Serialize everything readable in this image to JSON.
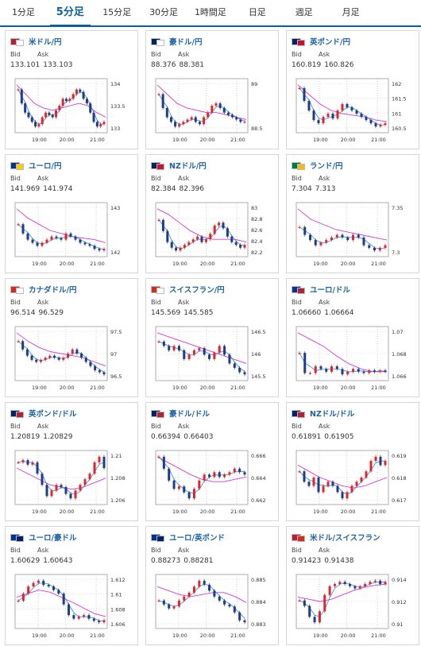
{
  "tabs": [
    "1分足",
    "5分足",
    "15分足",
    "30分足",
    "1時間足",
    "日足",
    "週足",
    "月足"
  ],
  "active_tab": 1,
  "labels": {
    "bid": "Bid",
    "ask": "Ask"
  },
  "cards": [
    {
      "pair": "米ドル/円",
      "bid": "133.101",
      "ask": "133.103",
      "flag": [
        "#b22234",
        "#ffffff"
      ],
      "y_ticks": [
        "134",
        "133.5",
        "133"
      ],
      "x_ticks": [
        "19:00",
        "20:00",
        "21:00"
      ],
      "candles": [
        133.8,
        133.5,
        133.3,
        133.2,
        133.1,
        133.0,
        133.05,
        133.2,
        133.3,
        133.25,
        133.2,
        133.35,
        133.45,
        133.6,
        133.55,
        133.6,
        133.7,
        133.8,
        133.75,
        133.6,
        133.5,
        133.3,
        133.1,
        133.0,
        133.05,
        133.1
      ],
      "ma": [
        133.9,
        133.7,
        133.5,
        133.4,
        133.35,
        133.4,
        133.45,
        133.5,
        133.45,
        133.3,
        133.2
      ]
    },
    {
      "pair": "豪ドル/円",
      "bid": "88.376",
      "ask": "88.381",
      "flag": [
        "#012169",
        "#ffffff"
      ],
      "y_ticks": [
        "89",
        "88.5"
      ],
      "x_ticks": [
        "19:00",
        "20:00",
        "21:00"
      ],
      "candles": [
        89.0,
        88.7,
        88.5,
        88.4,
        88.3,
        88.35,
        88.4,
        88.45,
        88.5,
        88.4,
        88.35,
        88.5,
        88.6,
        88.75,
        88.8,
        88.7,
        88.6,
        88.55,
        88.5,
        88.45,
        88.4,
        88.4
      ],
      "ma": [
        89.2,
        89.0,
        88.8,
        88.7,
        88.65,
        88.6,
        88.6,
        88.55,
        88.5,
        88.45
      ]
    },
    {
      "pair": "英ポンド/円",
      "bid": "160.819",
      "ask": "160.826",
      "flag": [
        "#012169",
        "#c8102e"
      ],
      "y_ticks": [
        "162",
        "161.5",
        "161",
        "160.5"
      ],
      "x_ticks": [
        "19:00",
        "20:00",
        "21:00"
      ],
      "candles": [
        161.9,
        161.5,
        161.2,
        160.9,
        160.8,
        161.0,
        161.1,
        160.95,
        161.2,
        161.4,
        161.3,
        161.2,
        161.1,
        161.0,
        160.9,
        160.8,
        160.7,
        160.75,
        160.8
      ],
      "ma": [
        162.0,
        161.7,
        161.4,
        161.2,
        161.1,
        161.05,
        161.0,
        160.9,
        160.85
      ]
    },
    {
      "pair": "ユーロ/円",
      "bid": "141.969",
      "ask": "141.974",
      "flag": [
        "#003399",
        "#ffcc00"
      ],
      "y_ticks": [
        "143",
        "142"
      ],
      "x_ticks": [
        "19:00",
        "20:00",
        "21:00"
      ],
      "candles": [
        142.8,
        142.5,
        142.3,
        142.2,
        142.1,
        142.2,
        142.3,
        142.4,
        142.35,
        142.3,
        142.5,
        142.4,
        142.3,
        142.2,
        142.15,
        142.1,
        142.0,
        141.95,
        142.0
      ],
      "ma": [
        143.3,
        143.0,
        142.8,
        142.6,
        142.5,
        142.4,
        142.35,
        142.3,
        142.2
      ]
    },
    {
      "pair": "NZドル/円",
      "bid": "82.384",
      "ask": "82.396",
      "flag": [
        "#012169",
        "#cc142b"
      ],
      "y_ticks": [
        "83",
        "82.8",
        "82.6",
        "82.4",
        "82.2"
      ],
      "x_ticks": [
        "19:00",
        "20:00",
        "21:00"
      ],
      "candles": [
        82.8,
        82.6,
        82.4,
        82.3,
        82.25,
        82.3,
        82.35,
        82.4,
        82.45,
        82.5,
        82.4,
        82.45,
        82.55,
        82.7,
        82.75,
        82.65,
        82.5,
        82.4,
        82.35,
        82.3,
        82.35
      ],
      "ma": [
        83.0,
        82.9,
        82.75,
        82.6,
        82.5,
        82.45,
        82.45,
        82.45,
        82.4
      ]
    },
    {
      "pair": "ランド/円",
      "bid": "7.304",
      "ask": "7.313",
      "flag": [
        "#007a4d",
        "#ffb612"
      ],
      "y_ticks": [
        "7.35",
        "7.3"
      ],
      "x_ticks": [
        "19:00",
        "20:00",
        "21:00"
      ],
      "candles": [
        7.345,
        7.33,
        7.32,
        7.31,
        7.315,
        7.32,
        7.325,
        7.33,
        7.325,
        7.32,
        7.33,
        7.325,
        7.31,
        7.305,
        7.3,
        7.305,
        7.31
      ],
      "ma": [
        7.38,
        7.36,
        7.35,
        7.34,
        7.335,
        7.33,
        7.325,
        7.32
      ]
    },
    {
      "pair": "カナダドル/円",
      "bid": "96.514",
      "ask": "96.529",
      "flag": [
        "#d52b1e",
        "#ffffff"
      ],
      "y_ticks": [
        "97.5",
        "97",
        "96.5"
      ],
      "x_ticks": [
        "19:00",
        "20:00",
        "21:00"
      ],
      "candles": [
        97.3,
        97.1,
        96.95,
        96.85,
        96.8,
        96.85,
        96.9,
        96.95,
        96.9,
        96.85,
        96.9,
        97.0,
        97.1,
        97.0,
        96.9,
        96.8,
        96.7,
        96.6,
        96.55,
        96.5
      ],
      "ma": [
        97.5,
        97.3,
        97.15,
        97.05,
        97.0,
        96.95,
        96.9,
        96.8,
        96.7
      ]
    },
    {
      "pair": "スイスフラン/円",
      "bid": "145.569",
      "ask": "145.585",
      "flag": [
        "#d52b1e",
        "#ffffff"
      ],
      "y_ticks": [
        "146.5",
        "146",
        "145.5"
      ],
      "x_ticks": [
        "19:00",
        "20:00",
        "21:00"
      ],
      "candles": [
        146.3,
        146.2,
        146.1,
        146.2,
        146.1,
        145.9,
        146.0,
        146.1,
        146.15,
        146.0,
        145.9,
        146.05,
        146.2,
        146.0,
        145.8,
        145.7,
        145.6,
        145.55
      ],
      "ma": [
        146.5,
        146.4,
        146.3,
        146.2,
        146.1,
        146.0,
        145.9,
        145.8
      ]
    },
    {
      "pair": "ユーロ/ドル",
      "bid": "1.06660",
      "ask": "1.06664",
      "flag": [
        "#003399",
        "#b22234"
      ],
      "y_ticks": [
        "1.07",
        "1.068",
        "1.066"
      ],
      "x_ticks": [
        "19:00",
        "20:00",
        "21:00"
      ],
      "candles": [
        1.068,
        1.0665,
        1.0665,
        1.067,
        1.0668,
        1.0666,
        1.067,
        1.0668,
        1.0664,
        1.0666,
        1.0668,
        1.0666,
        1.0665,
        1.0667,
        1.0666,
        1.0667,
        1.0666
      ],
      "ma": [
        1.0695,
        1.069,
        1.0685,
        1.0678,
        1.0672,
        1.0668,
        1.0666,
        1.0666
      ]
    },
    {
      "pair": "英ポンド/ドル",
      "bid": "1.20819",
      "ask": "1.20829",
      "flag": [
        "#012169",
        "#b22234"
      ],
      "y_ticks": [
        "1.21",
        "1.208",
        "1.206"
      ],
      "x_ticks": [
        "19:00",
        "20:00",
        "21:00"
      ],
      "candles": [
        1.209,
        1.2092,
        1.2088,
        1.209,
        1.208,
        1.207,
        1.206,
        1.2065,
        1.207,
        1.2068,
        1.2062,
        1.2058,
        1.2065,
        1.207,
        1.2075,
        1.208,
        1.209,
        1.2095,
        1.2085
      ],
      "ma": [
        1.2085,
        1.208,
        1.2075,
        1.207,
        1.2068,
        1.2066,
        1.2068,
        1.2072,
        1.2076
      ]
    },
    {
      "pair": "豪ドル/ドル",
      "bid": "0.66394",
      "ask": "0.66403",
      "flag": [
        "#012169",
        "#b22234"
      ],
      "y_ticks": [
        "0.666",
        "0.664",
        "0.662"
      ],
      "x_ticks": [
        "19:00",
        "20:00",
        "21:00"
      ],
      "candles": [
        0.6655,
        0.6645,
        0.6635,
        0.6628,
        0.663,
        0.6625,
        0.662,
        0.6628,
        0.6635,
        0.664,
        0.6638,
        0.6642,
        0.6638,
        0.664,
        0.6642,
        0.6645,
        0.6642,
        0.664
      ],
      "ma": [
        0.6655,
        0.665,
        0.6645,
        0.664,
        0.6636,
        0.6634,
        0.6634,
        0.6636,
        0.6638
      ]
    },
    {
      "pair": "NZドル/ドル",
      "bid": "0.61891",
      "ask": "0.61905",
      "flag": [
        "#012169",
        "#b22234"
      ],
      "y_ticks": [
        "0.619",
        "0.618",
        "0.617"
      ],
      "x_ticks": [
        "19:00",
        "20:00",
        "21:00"
      ],
      "candles": [
        0.6185,
        0.618,
        0.6178,
        0.6182,
        0.6175,
        0.6178,
        0.618,
        0.6178,
        0.6175,
        0.6172,
        0.6175,
        0.6178,
        0.618,
        0.6182,
        0.6185,
        0.619,
        0.6192,
        0.6188,
        0.619
      ],
      "ma": [
        0.6188,
        0.6185,
        0.6182,
        0.618,
        0.6178,
        0.6177,
        0.6178,
        0.618,
        0.6182
      ]
    },
    {
      "pair": "ユーロ/豪ドル",
      "bid": "1.60629",
      "ask": "1.60643",
      "flag": [
        "#003399",
        "#012169"
      ],
      "y_ticks": [
        "1.612",
        "1.61",
        "1.608",
        "1.606"
      ],
      "x_ticks": [
        "19:00",
        "20:00",
        "21:00"
      ],
      "candles": [
        1.609,
        1.61,
        1.611,
        1.6115,
        1.6118,
        1.6112,
        1.611,
        1.6105,
        1.61,
        1.6085,
        1.607,
        1.6065,
        1.6068,
        1.607,
        1.6065,
        1.6062,
        1.606,
        1.6063
      ],
      "ma": [
        1.6095,
        1.61,
        1.6105,
        1.6102,
        1.6095,
        1.6088,
        1.608,
        1.6072,
        1.6068
      ]
    },
    {
      "pair": "ユーロ/英ポンド",
      "bid": "0.88273",
      "ask": "0.88281",
      "flag": [
        "#003399",
        "#012169"
      ],
      "y_ticks": [
        "0.885",
        "0.884",
        "0.883"
      ],
      "x_ticks": [
        "19:00",
        "20:00",
        "21:00"
      ],
      "candles": [
        0.8838,
        0.8836,
        0.8834,
        0.8835,
        0.8838,
        0.884,
        0.8842,
        0.8845,
        0.8848,
        0.8846,
        0.8843,
        0.884,
        0.8838,
        0.8836,
        0.8835,
        0.8832,
        0.8828,
        0.8827
      ],
      "ma": [
        0.8845,
        0.8843,
        0.8841,
        0.884,
        0.8841,
        0.8842,
        0.8842,
        0.884,
        0.8837
      ]
    },
    {
      "pair": "米ドル/スイスフラン",
      "bid": "0.91423",
      "ask": "0.91438",
      "flag": [
        "#b22234",
        "#d52b1e"
      ],
      "y_ticks": [
        "0.914",
        "0.912",
        "0.91"
      ],
      "x_ticks": [
        "19:00",
        "20:00",
        "21:00"
      ],
      "candles": [
        0.9125,
        0.912,
        0.911,
        0.9105,
        0.9115,
        0.913,
        0.9138,
        0.914,
        0.9142,
        0.914,
        0.9138,
        0.9136,
        0.9138,
        0.914,
        0.9142,
        0.9143,
        0.914,
        0.9142
      ],
      "ma": [
        0.9128,
        0.9126,
        0.9124,
        0.9126,
        0.913,
        0.9134,
        0.9137,
        0.9139,
        0.914
      ]
    }
  ]
}
